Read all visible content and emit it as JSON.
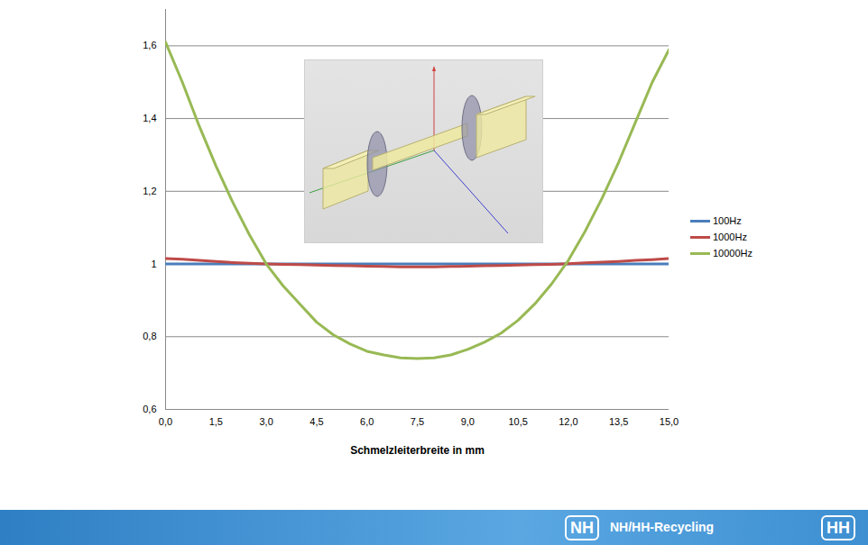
{
  "chart_data": {
    "type": "line",
    "x_label": "Schmelzleiterbreite in mm",
    "x": [
      0,
      0.5,
      1,
      1.5,
      2,
      2.5,
      3,
      3.5,
      4,
      4.5,
      5,
      5.5,
      6,
      6.5,
      7,
      7.5,
      8,
      8.5,
      9,
      9.5,
      10,
      10.5,
      11,
      11.5,
      12,
      12.5,
      13,
      13.5,
      14,
      14.5,
      15
    ],
    "series": [
      {
        "name": "100Hz",
        "color": "#4a7ebb",
        "values": [
          1,
          1,
          1,
          1,
          1,
          1,
          1,
          1,
          1,
          1,
          1,
          1,
          1,
          1,
          1,
          1,
          1,
          1,
          1,
          1,
          1,
          1,
          1,
          1,
          1,
          1,
          1,
          1,
          1,
          1,
          1
        ]
      },
      {
        "name": "1000Hz",
        "color": "#be4b48",
        "values": [
          1.015,
          1.013,
          1.01,
          1.007,
          1.004,
          1.002,
          1.0,
          0.999,
          0.998,
          0.997,
          0.996,
          0.995,
          0.994,
          0.993,
          0.992,
          0.992,
          0.992,
          0.993,
          0.994,
          0.995,
          0.996,
          0.997,
          0.998,
          0.999,
          1.001,
          1.003,
          1.005,
          1.007,
          1.01,
          1.012,
          1.015
        ]
      },
      {
        "name": "10000Hz",
        "color": "#98b954",
        "values": [
          1.61,
          1.5,
          1.38,
          1.27,
          1.17,
          1.08,
          1.0,
          0.94,
          0.89,
          0.84,
          0.805,
          0.78,
          0.76,
          0.75,
          0.742,
          0.74,
          0.742,
          0.75,
          0.765,
          0.785,
          0.81,
          0.845,
          0.89,
          0.945,
          1.01,
          1.09,
          1.18,
          1.28,
          1.39,
          1.5,
          1.59
        ]
      }
    ],
    "xlim": [
      0,
      15
    ],
    "xticks": [
      {
        "value": 0,
        "label": "0,0"
      },
      {
        "value": 1.5,
        "label": "1,5"
      },
      {
        "value": 3,
        "label": "3,0"
      },
      {
        "value": 4.5,
        "label": "4,5"
      },
      {
        "value": 6,
        "label": "6,0"
      },
      {
        "value": 7.5,
        "label": "7,5"
      },
      {
        "value": 9,
        "label": "9,0"
      },
      {
        "value": 10.5,
        "label": "10,5"
      },
      {
        "value": 12,
        "label": "12,0"
      },
      {
        "value": 13.5,
        "label": "13,5"
      },
      {
        "value": 15,
        "label": "15,0"
      }
    ],
    "ylim": [
      0.6,
      1.7
    ],
    "yticks": [
      {
        "value": 0.6,
        "label": "0,6"
      },
      {
        "value": 0.8,
        "label": "0,8"
      },
      1,
      {
        "value": 1.2,
        "label": "1,2"
      },
      {
        "value": 1.4,
        "label": "1,4"
      },
      {
        "value": 1.6,
        "label": "1,6"
      }
    ],
    "grid": true,
    "legend": "right"
  },
  "footer": {
    "logos": [
      "NH",
      "HH"
    ],
    "text": "NH/HH-Recycling"
  }
}
